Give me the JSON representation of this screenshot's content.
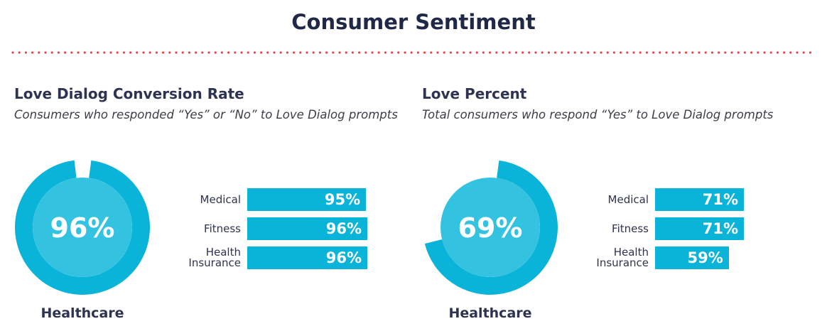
{
  "page": {
    "title": "Consumer Sentiment"
  },
  "colors": {
    "accent": "#0ab4d8",
    "inner": "#33c3e0",
    "divider": "#e8474f",
    "text": "#2d3350"
  },
  "chart_data": [
    {
      "type": "pie",
      "title": "Love Dialog Conversion Rate",
      "subtitle": "Consumers who responded “Yes” or “No” to Love Dialog prompts",
      "donut": {
        "value": 96,
        "display": "96%",
        "label": "Healthcare"
      },
      "bars": {
        "type": "bar",
        "categories": [
          "Medical",
          "Fitness",
          "Health\nInsurance"
        ],
        "values": [
          95,
          96,
          96
        ],
        "value_labels": [
          "95%",
          "96%",
          "96%"
        ]
      }
    },
    {
      "type": "pie",
      "title": "Love Percent",
      "subtitle": "Total consumers who respond “Yes” to Love Dialog prompts",
      "donut": {
        "value": 69,
        "display": "69%",
        "label": "Healthcare"
      },
      "bars": {
        "type": "bar",
        "categories": [
          "Medical",
          "Fitness",
          "Health\nInsurance"
        ],
        "values": [
          71,
          71,
          59
        ],
        "value_labels": [
          "71%",
          "71%",
          "59%"
        ]
      }
    }
  ]
}
